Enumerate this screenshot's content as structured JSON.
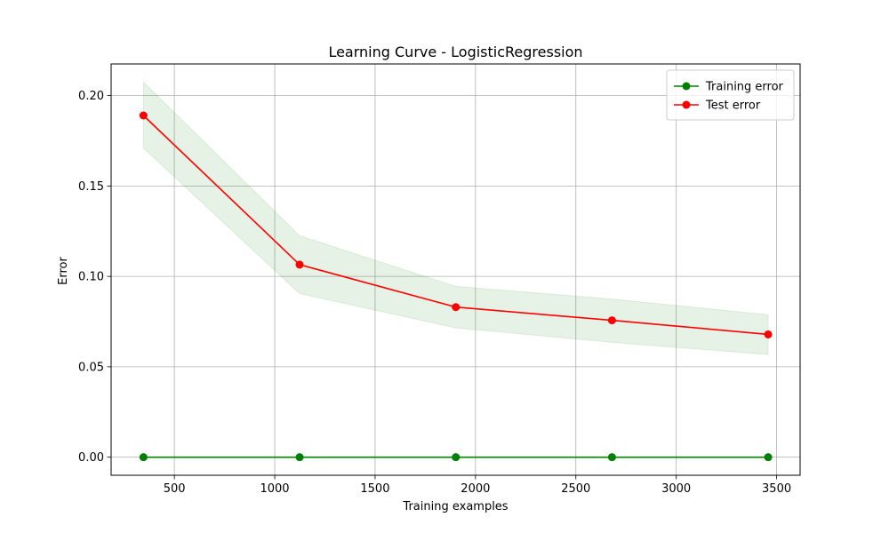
{
  "chart_data": {
    "type": "line",
    "title": "Learning Curve - LogisticRegression",
    "xlabel": "Training examples",
    "ylabel": "Error",
    "x": [
      346,
      1124,
      1902,
      2680,
      3458
    ],
    "xlim": [
      185,
      3617
    ],
    "ylim": [
      -0.01,
      0.2175
    ],
    "xticks": [
      500,
      1000,
      1500,
      2000,
      2500,
      3000,
      3500
    ],
    "yticks": [
      0.0,
      0.05,
      0.1,
      0.15,
      0.2
    ],
    "ytick_labels": [
      "0.00",
      "0.05",
      "0.10",
      "0.15",
      "0.20"
    ],
    "grid": true,
    "legend_position": "top-right",
    "series": [
      {
        "name": "Training error",
        "color": "#008000",
        "marker": "circle",
        "values": [
          0.0,
          0.0,
          0.0,
          0.0,
          0.0
        ]
      },
      {
        "name": "Test error",
        "color": "#ff0000",
        "marker": "circle",
        "values": [
          0.189,
          0.1065,
          0.083,
          0.0757,
          0.0679
        ],
        "band_color": "#008000",
        "band_lower": [
          0.171,
          0.0905,
          0.0715,
          0.0635,
          0.0568
        ],
        "band_upper": [
          0.2075,
          0.1225,
          0.0945,
          0.0875,
          0.0788
        ]
      }
    ]
  }
}
